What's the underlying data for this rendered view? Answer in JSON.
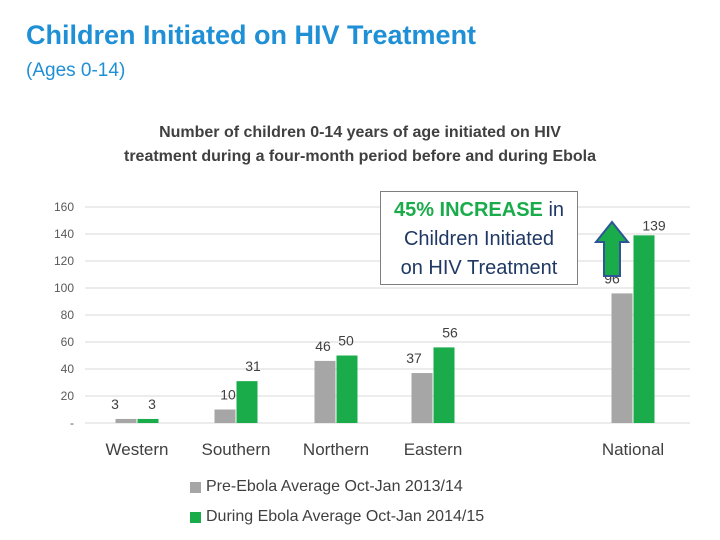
{
  "slide": {
    "title": "Children Initiated on HIV Treatment",
    "subtitle": "(Ages 0-14)"
  },
  "callout": {
    "highlight": "45% INCREASE",
    "connector": "in",
    "line2": "Children Initiated",
    "line3": "on HIV Treatment"
  },
  "colors": {
    "title": "#1f8fd6",
    "pre_series": "#a6a6a6",
    "during_series": "#1aab4a",
    "arrow_fill": "#1aab4a",
    "arrow_outline": "#2f5597"
  },
  "chart_data": {
    "type": "bar",
    "title_lines": [
      "Number of children 0-14 years of age initiated on HIV",
      "treatment during a four-month period before and during Ebola"
    ],
    "categories": [
      "Western",
      "Southern",
      "Northern",
      "Eastern",
      "National"
    ],
    "series": [
      {
        "name": "Pre-Ebola Average Oct-Jan 2013/14",
        "values": [
          3,
          10,
          46,
          37,
          96
        ],
        "labels": [
          "3",
          "10",
          "46",
          "37",
          "96"
        ]
      },
      {
        "name": "During Ebola Average Oct-Jan 2014/15",
        "values": [
          3,
          31,
          50,
          56,
          139
        ],
        "labels": [
          "3",
          "31",
          "50",
          "56",
          "139"
        ]
      }
    ],
    "ylim": [
      0,
      160
    ],
    "yticks": [
      0,
      20,
      40,
      60,
      80,
      100,
      120,
      140,
      160
    ],
    "ytick_labels": [
      "-",
      "20",
      "40",
      "60",
      "80",
      "100",
      "120",
      "140",
      "160"
    ],
    "gridlines": true,
    "legend_position": "bottom"
  }
}
